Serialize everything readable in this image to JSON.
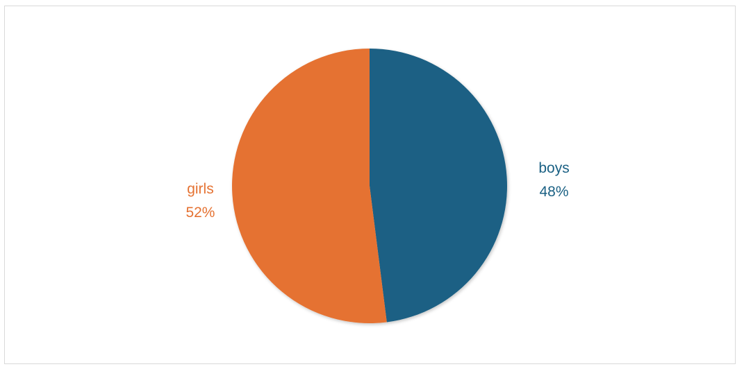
{
  "chart_data": {
    "type": "pie",
    "title": "",
    "legend": "none",
    "slices": [
      {
        "label": "boys",
        "value": 48,
        "percent_label": "48%",
        "color": "#1b6184"
      },
      {
        "label": "girls",
        "value": 52,
        "percent_label": "52%",
        "color": "#e57232"
      }
    ]
  }
}
